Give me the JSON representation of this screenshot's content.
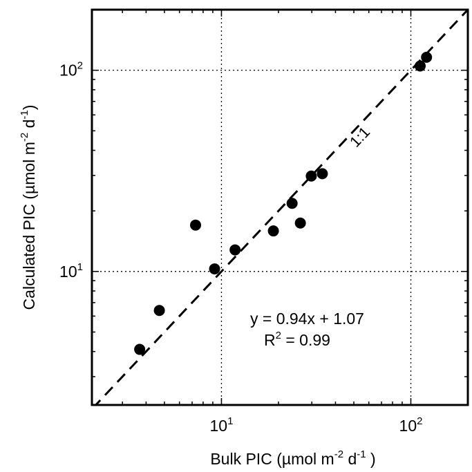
{
  "chart_data": {
    "type": "scatter",
    "xlabel": "Bulk PIC (µmol m",
    "xlabel_sup": "-2",
    "xlabel_rest": " d",
    "xlabel_sup2": "-1",
    "xlabel_end": " )",
    "ylabel": "Calculated PIC (µmol m",
    "ylabel_sup": "-2",
    "ylabel_rest": " d",
    "ylabel_sup2": "-1",
    "ylabel_end": ")",
    "x_scale": "log",
    "y_scale": "log",
    "xlim": [
      2.07,
      200
    ],
    "ylim": [
      2.17,
      200
    ],
    "grid": true,
    "x_ticks": [
      {
        "value": 10,
        "base": "10",
        "exp": "1"
      },
      {
        "value": 100,
        "base": "10",
        "exp": "2"
      }
    ],
    "y_ticks": [
      {
        "value": 10,
        "base": "10",
        "exp": "1"
      },
      {
        "value": 100,
        "base": "10",
        "exp": "2"
      }
    ],
    "points": [
      {
        "x": 3.7,
        "y": 4.1
      },
      {
        "x": 4.7,
        "y": 6.4
      },
      {
        "x": 7.3,
        "y": 17.0
      },
      {
        "x": 9.2,
        "y": 10.3
      },
      {
        "x": 11.8,
        "y": 12.8
      },
      {
        "x": 18.8,
        "y": 15.9
      },
      {
        "x": 23.6,
        "y": 21.8
      },
      {
        "x": 26.1,
        "y": 17.4
      },
      {
        "x": 29.8,
        "y": 29.8
      },
      {
        "x": 34.1,
        "y": 30.6
      },
      {
        "x": 112.0,
        "y": 105.0
      },
      {
        "x": 121.0,
        "y": 116.0
      }
    ],
    "reference_line": {
      "label": "1:1",
      "slope": 1,
      "intercept": 0
    },
    "annotations": {
      "equation": "y = 0.94x + 1.07",
      "r2_prefix": "R",
      "r2_sup": "2",
      "r2_value": " = 0.99"
    }
  }
}
